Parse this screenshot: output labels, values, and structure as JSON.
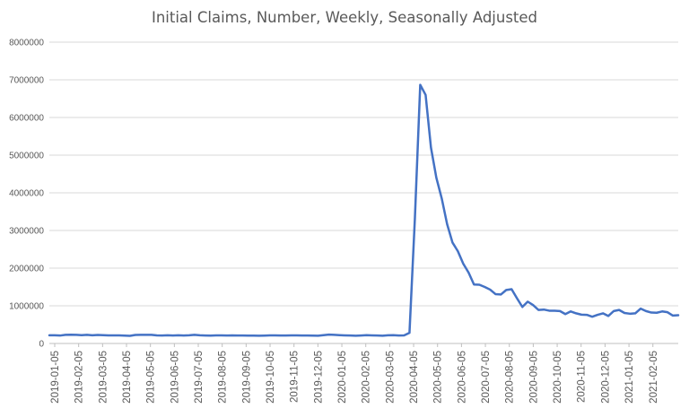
{
  "chart_data": {
    "type": "line",
    "title": "Initial Claims, Number, Weekly, Seasonally Adjusted",
    "xlabel": "",
    "ylabel": "",
    "ylim": [
      0,
      8000000
    ],
    "yticks": [
      "0",
      "1000000",
      "2000000",
      "3000000",
      "4000000",
      "5000000",
      "6000000",
      "7000000",
      "8000000"
    ],
    "xticks": [
      "2019-01-05",
      "2019-02-05",
      "2019-03-05",
      "2019-04-05",
      "2019-05-05",
      "2019-06-05",
      "2019-07-05",
      "2019-08-05",
      "2019-09-05",
      "2019-10-05",
      "2019-11-05",
      "2019-12-05",
      "2020-01-05",
      "2020-02-05",
      "2020-03-05",
      "2020-04-05",
      "2020-05-05",
      "2020-06-05",
      "2020-07-05",
      "2020-08-05",
      "2020-09-05",
      "2020-10-05",
      "2020-11-05",
      "2020-12-05",
      "2021-01-05",
      "2021-02-05"
    ],
    "grid": true,
    "legend": "none",
    "line_color": "#4472c4",
    "series": [
      {
        "values": [
          216000,
          218000,
          210000,
          230000,
          232000,
          228000,
          221000,
          229000,
          216000,
          225000,
          221000,
          214000,
          215000,
          214000,
          208000,
          203000,
          227000,
          230000,
          229000,
          228000,
          213000,
          212000,
          216000,
          212000,
          216000,
          211000,
          218000,
          229000,
          216000,
          211000,
          209000,
          215000,
          213000,
          210000,
          214000,
          211000,
          210000,
          208000,
          207000,
          205000,
          209000,
          215000,
          214000,
          211000,
          210000,
          213000,
          215000,
          212000,
          211000,
          208000,
          205000,
          220000,
          235000,
          228000,
          221000,
          214000,
          210000,
          205000,
          212000,
          221000,
          215000,
          210000,
          206000,
          216000,
          219000,
          211000,
          215000,
          282000,
          3300000,
          6867000,
          6600000,
          5200000,
          4400000,
          3850000,
          3170000,
          2680000,
          2450000,
          2120000,
          1880000,
          1566000,
          1560000,
          1500000,
          1430000,
          1310000,
          1300000,
          1420000,
          1440000,
          1200000,
          970000,
          1110000,
          1020000,
          890000,
          900000,
          870000,
          868000,
          860000,
          780000,
          850000,
          800000,
          765000,
          760000,
          710000,
          760000,
          800000,
          730000,
          860000,
          890000,
          810000,
          790000,
          800000,
          925000,
          860000,
          820000,
          815000,
          850000,
          830000,
          740000,
          750000
        ]
      }
    ]
  }
}
